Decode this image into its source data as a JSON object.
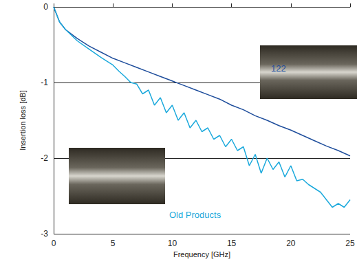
{
  "chart_data": {
    "type": "line",
    "x_label": "Frequency [GHz]",
    "y_label": "Insertion loss [dB]",
    "xlim": [
      0,
      25
    ],
    "xticks": [
      0,
      5,
      10,
      15,
      20,
      25
    ],
    "ylim": [
      -3,
      0
    ],
    "yticks": [
      -3,
      -2,
      -1,
      0
    ],
    "grid": true,
    "series": [
      {
        "name": "122",
        "color": "#1f4e9c",
        "x": [
          0,
          0.5,
          1,
          2,
          3,
          4,
          5,
          6,
          7,
          8,
          9,
          10,
          11,
          12,
          13,
          14,
          15,
          16,
          17,
          18,
          19,
          20,
          21,
          22,
          23,
          24,
          25
        ],
        "values": [
          0,
          -0.2,
          -0.3,
          -0.42,
          -0.52,
          -0.6,
          -0.68,
          -0.74,
          -0.8,
          -0.86,
          -0.92,
          -0.98,
          -1.04,
          -1.1,
          -1.16,
          -1.22,
          -1.3,
          -1.36,
          -1.44,
          -1.5,
          -1.57,
          -1.63,
          -1.7,
          -1.77,
          -1.84,
          -1.9,
          -1.97
        ]
      },
      {
        "name": "Old Products",
        "color": "#1ba9dc",
        "x": [
          0,
          0.5,
          1,
          2,
          3,
          4,
          5,
          5.5,
          6,
          6.5,
          7,
          7.5,
          8,
          8.5,
          9,
          9.5,
          10,
          10.5,
          11,
          11.5,
          12,
          12.5,
          13,
          13.5,
          14,
          14.5,
          15,
          15.5,
          16,
          16.5,
          17,
          17.5,
          18,
          18.5,
          19,
          19.5,
          20,
          20.5,
          21,
          21.5,
          22,
          22.5,
          23,
          23.5,
          24,
          24.5,
          25
        ],
        "values": [
          0,
          -0.2,
          -0.3,
          -0.45,
          -0.56,
          -0.67,
          -0.77,
          -0.85,
          -0.92,
          -1.0,
          -1.02,
          -1.15,
          -1.1,
          -1.3,
          -1.2,
          -1.4,
          -1.3,
          -1.5,
          -1.4,
          -1.6,
          -1.5,
          -1.65,
          -1.6,
          -1.75,
          -1.7,
          -1.85,
          -1.75,
          -1.9,
          -1.85,
          -2.1,
          -1.95,
          -2.2,
          -2.0,
          -2.15,
          -2.05,
          -2.25,
          -2.1,
          -2.3,
          -2.28,
          -2.35,
          -2.4,
          -2.45,
          -2.55,
          -2.65,
          -2.6,
          -2.65,
          -2.55
        ]
      }
    ]
  }
}
